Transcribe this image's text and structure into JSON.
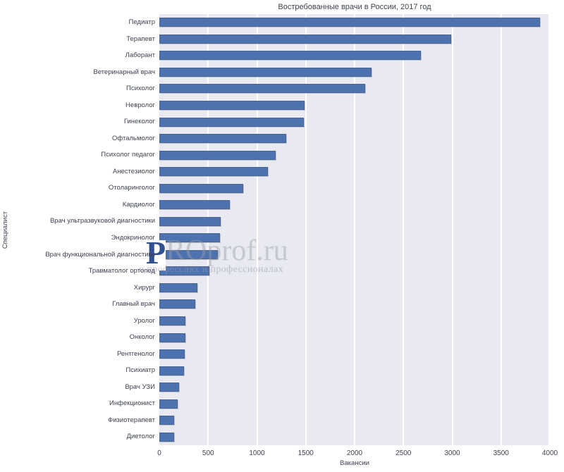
{
  "chart_data": {
    "type": "bar",
    "orientation": "horizontal",
    "title": "Востребованные врачи в России, 2017 год",
    "xlabel": "Вакансии",
    "ylabel": "Специалист",
    "xlim": [
      0,
      4000
    ],
    "x_ticks": [
      0,
      500,
      1000,
      1500,
      2000,
      2500,
      3000,
      3500,
      4000
    ],
    "grid": true,
    "legend": "none",
    "plot_bg_color": "#e9e9f1",
    "bar_color": "#4c72b0",
    "categories": [
      "Педиатр",
      "Терапевт",
      "Лаборант",
      "Ветеринарный врач",
      "Психолог",
      "Невролог",
      "Гинеколог",
      "Офтальмолог",
      "Психолог педагог",
      "Анестезиолог",
      "Отоларинголог",
      "Кардиолог",
      "Врач ультразвуковой диагностики",
      "Эндокринолог",
      "Врач функциональной диагностики",
      "Травматолог ортопед",
      "Хирург",
      "Главный врач",
      "Уролог",
      "Онколог",
      "Рентгенолог",
      "Психиатр",
      "Врач УЗИ",
      "Инфекционист",
      "Физиотерапевт",
      "Диетолог"
    ],
    "values": [
      3900,
      2990,
      2680,
      2170,
      2110,
      1490,
      1480,
      1300,
      1190,
      1110,
      860,
      720,
      630,
      620,
      600,
      510,
      390,
      370,
      270,
      270,
      260,
      255,
      200,
      190,
      155,
      150
    ]
  },
  "watermark": {
    "logo_letter": "P",
    "text": "ROprof.ru",
    "tagline": "о профессиях и профессионалах"
  }
}
